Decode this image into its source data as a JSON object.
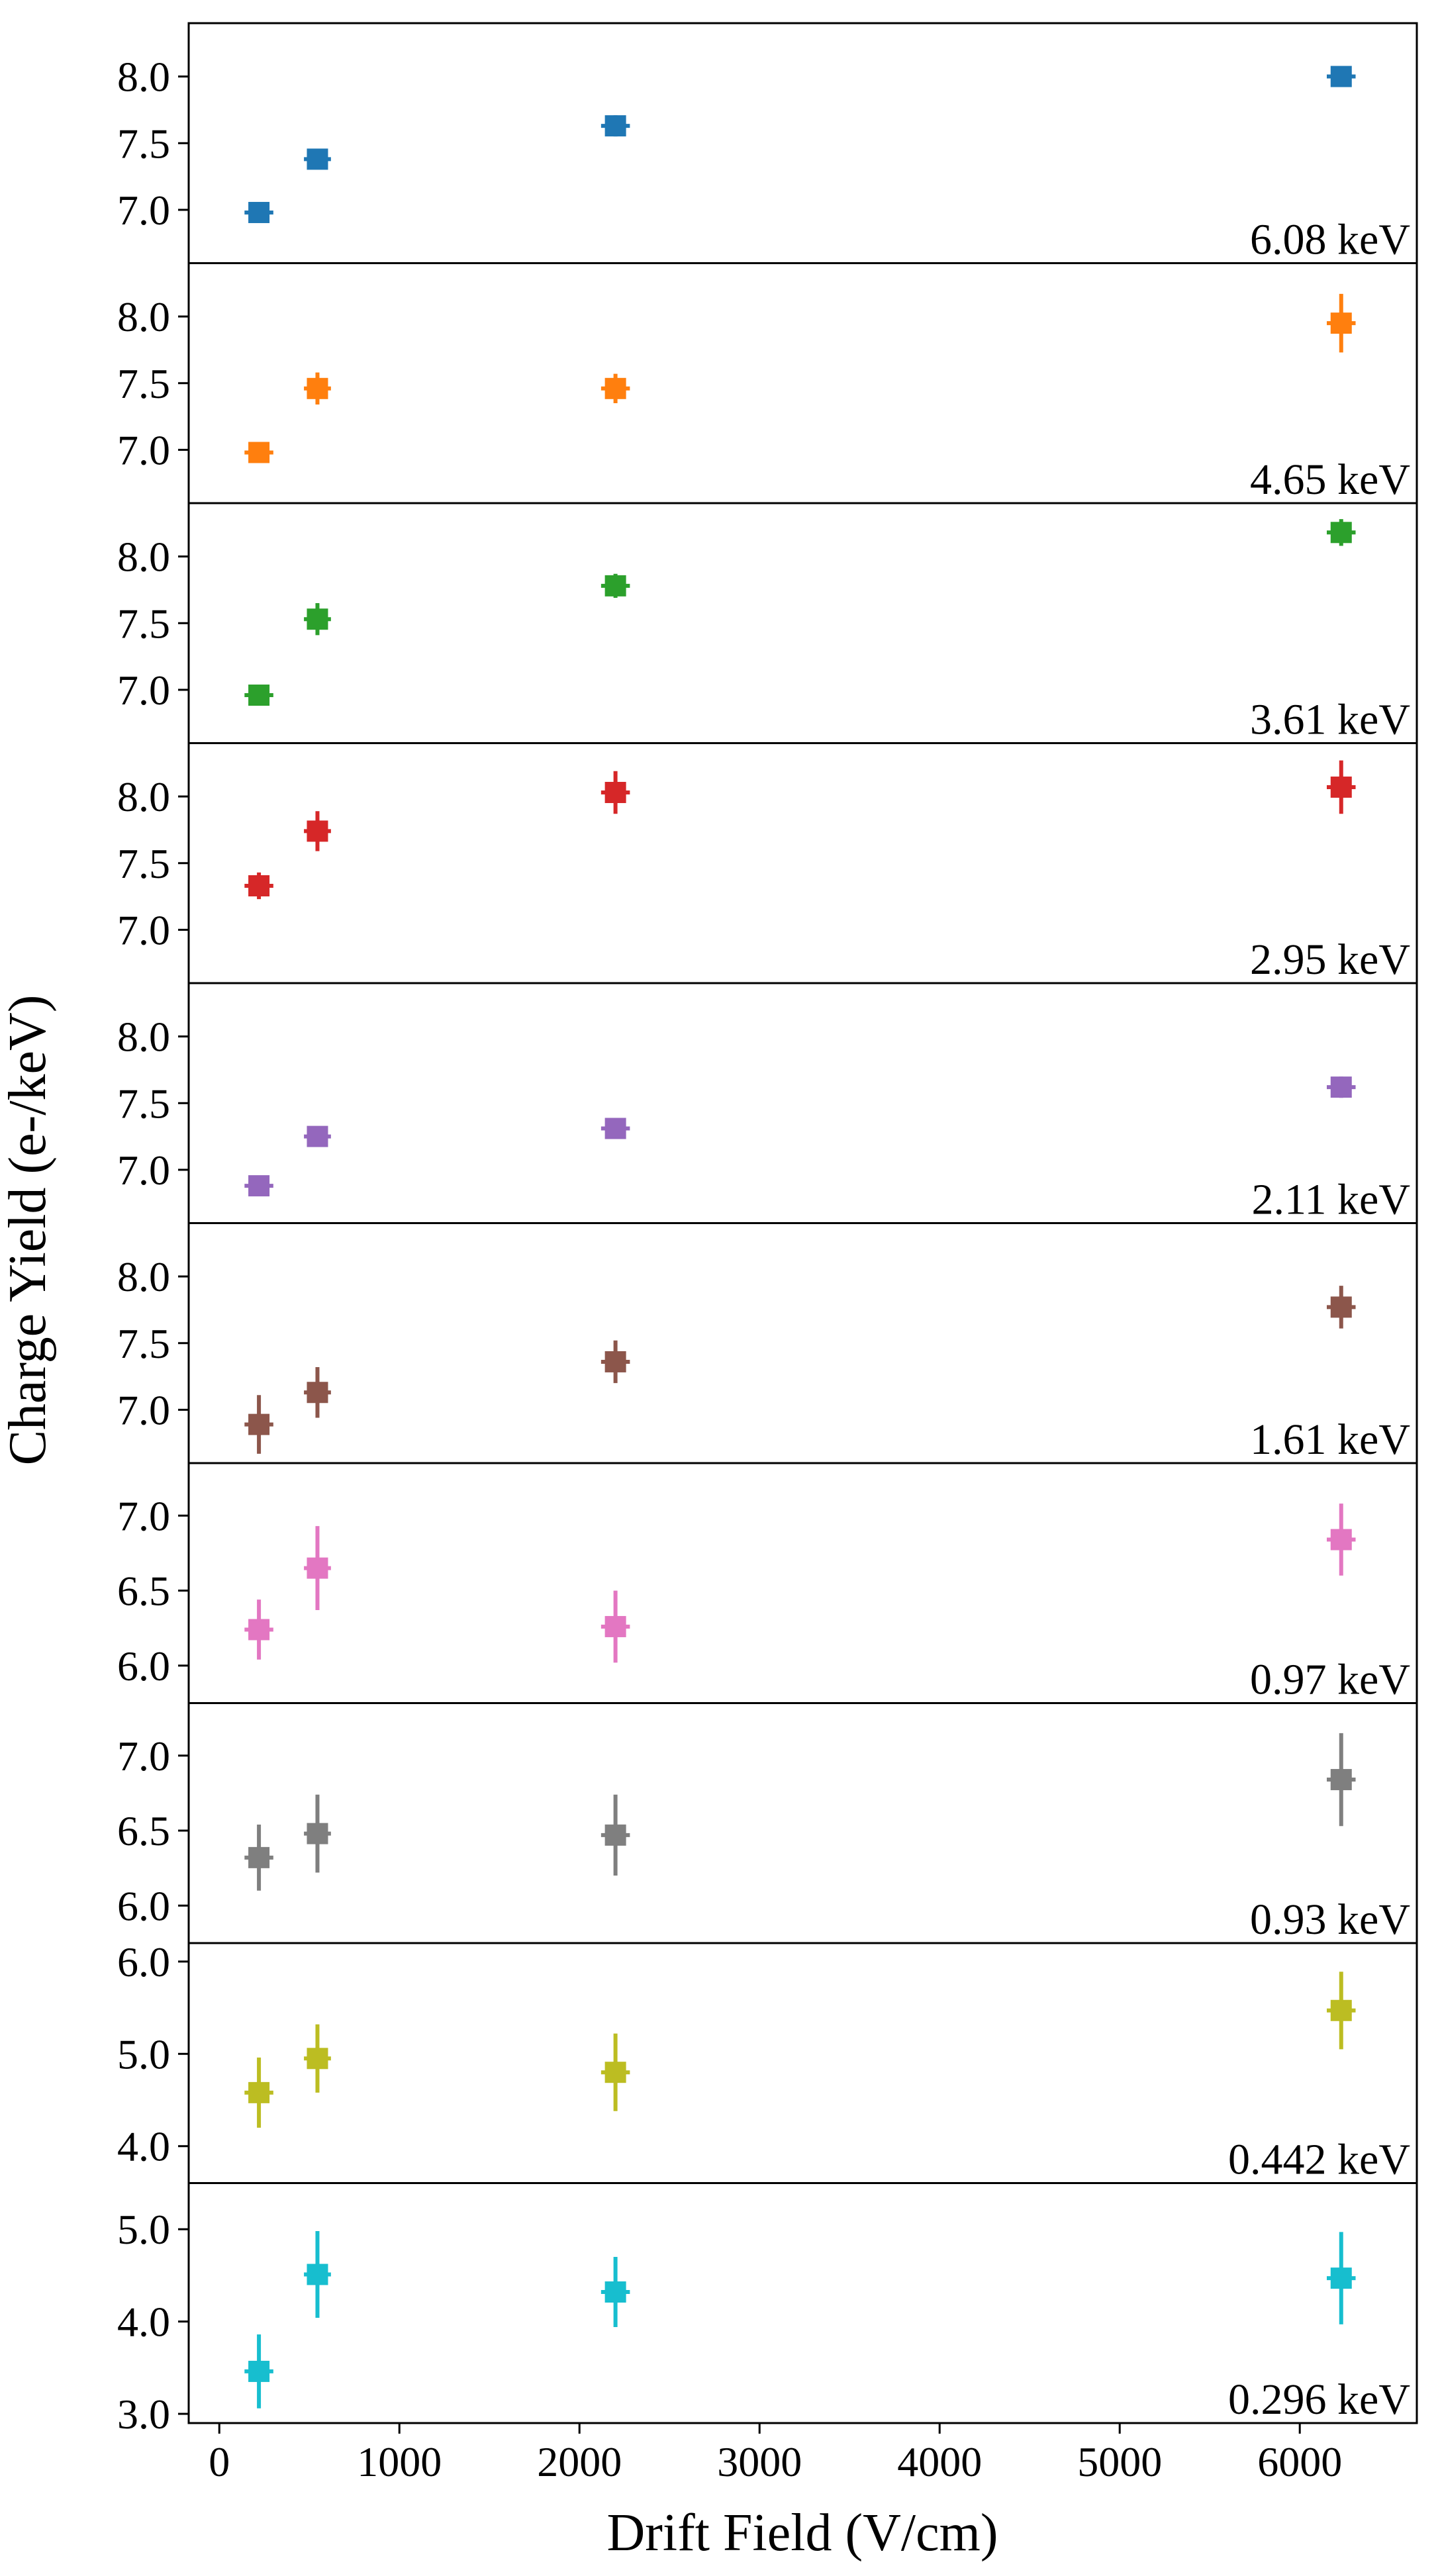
{
  "chart_data": {
    "type": "scatter",
    "subtype": "errorbar-stacked-panels",
    "xlabel": "Drift Field (V/cm)",
    "ylabel": "Charge Yield (e-/keV)",
    "xlim": [
      -170,
      6650
    ],
    "xticks": [
      0,
      1000,
      2000,
      3000,
      4000,
      5000,
      6000
    ],
    "xtick_labels": [
      "0",
      "1000",
      "2000",
      "3000",
      "4000",
      "5000",
      "6000"
    ],
    "x": [
      220,
      545,
      2200,
      6230
    ],
    "x_error": [
      80,
      75,
      80,
      80
    ],
    "panels": [
      {
        "label": "6.08 keV",
        "color": "#1f77b4",
        "ylim": [
          6.6,
          8.4
        ],
        "yticks": [
          7.0,
          7.5,
          8.0
        ],
        "ytick_labels": [
          "7.0",
          "7.5",
          "8.0"
        ],
        "values": [
          6.98,
          7.38,
          7.63,
          8.0
        ],
        "errors": [
          0.03,
          0.07,
          0.08,
          0.07
        ]
      },
      {
        "label": "4.65 keV",
        "color": "#ff7f0e",
        "ylim": [
          6.6,
          8.4
        ],
        "yticks": [
          7.0,
          7.5,
          8.0
        ],
        "ytick_labels": [
          "7.0",
          "7.5",
          "8.0"
        ],
        "values": [
          6.98,
          7.46,
          7.46,
          7.95
        ],
        "errors": [
          0.07,
          0.12,
          0.11,
          0.22
        ]
      },
      {
        "label": "3.61 keV",
        "color": "#2ca02c",
        "ylim": [
          6.6,
          8.4
        ],
        "yticks": [
          7.0,
          7.5,
          8.0
        ],
        "ytick_labels": [
          "7.0",
          "7.5",
          "8.0"
        ],
        "values": [
          6.96,
          7.53,
          7.78,
          8.18
        ],
        "errors": [
          0.07,
          0.12,
          0.09,
          0.1
        ]
      },
      {
        "label": "2.95 keV",
        "color": "#d62728",
        "ylim": [
          6.6,
          8.4
        ],
        "yticks": [
          7.0,
          7.5,
          8.0
        ],
        "ytick_labels": [
          "7.0",
          "7.5",
          "8.0"
        ],
        "values": [
          7.33,
          7.74,
          8.03,
          8.07
        ],
        "errors": [
          0.1,
          0.15,
          0.16,
          0.2
        ]
      },
      {
        "label": "2.11 keV",
        "color": "#9467bd",
        "ylim": [
          6.6,
          8.4
        ],
        "yticks": [
          7.0,
          7.5,
          8.0
        ],
        "ytick_labels": [
          "7.0",
          "7.5",
          "8.0"
        ],
        "values": [
          6.88,
          7.25,
          7.31,
          7.62
        ],
        "errors": [
          0.05,
          0.07,
          0.06,
          0.08
        ]
      },
      {
        "label": "1.61 keV",
        "color": "#8c564b",
        "ylim": [
          6.6,
          8.4
        ],
        "yticks": [
          7.0,
          7.5,
          8.0
        ],
        "ytick_labels": [
          "7.0",
          "7.5",
          "8.0"
        ],
        "values": [
          6.89,
          7.13,
          7.36,
          7.77
        ],
        "errors": [
          0.22,
          0.19,
          0.16,
          0.16
        ]
      },
      {
        "label": "0.97 keV",
        "color": "#e377c2",
        "ylim": [
          5.75,
          7.35
        ],
        "yticks": [
          6.0,
          6.5,
          7.0
        ],
        "ytick_labels": [
          "6.0",
          "6.5",
          "7.0"
        ],
        "values": [
          6.24,
          6.65,
          6.26,
          6.84
        ],
        "errors": [
          0.2,
          0.28,
          0.24,
          0.24
        ]
      },
      {
        "label": "0.93 keV",
        "color": "#7f7f7f",
        "ylim": [
          5.75,
          7.35
        ],
        "yticks": [
          6.0,
          6.5,
          7.0
        ],
        "ytick_labels": [
          "6.0",
          "6.5",
          "7.0"
        ],
        "values": [
          6.32,
          6.48,
          6.47,
          6.84
        ],
        "errors": [
          0.22,
          0.26,
          0.27,
          0.31
        ]
      },
      {
        "label": "0.442 keV",
        "color": "#bcbd22",
        "ylim": [
          3.6,
          6.2
        ],
        "yticks": [
          4.0,
          5.0,
          6.0
        ],
        "ytick_labels": [
          "4.0",
          "5.0",
          "6.0"
        ],
        "values": [
          4.58,
          4.95,
          4.8,
          5.47
        ],
        "errors": [
          0.38,
          0.37,
          0.42,
          0.42
        ]
      },
      {
        "label": "0.296 keV",
        "color": "#17becf",
        "ylim": [
          2.9,
          5.5
        ],
        "yticks": [
          3.0,
          4.0,
          5.0
        ],
        "ytick_labels": [
          "3.0",
          "4.0",
          "5.0"
        ],
        "values": [
          3.46,
          4.51,
          4.32,
          4.47
        ],
        "errors": [
          0.4,
          0.47,
          0.38,
          0.5
        ]
      }
    ]
  }
}
